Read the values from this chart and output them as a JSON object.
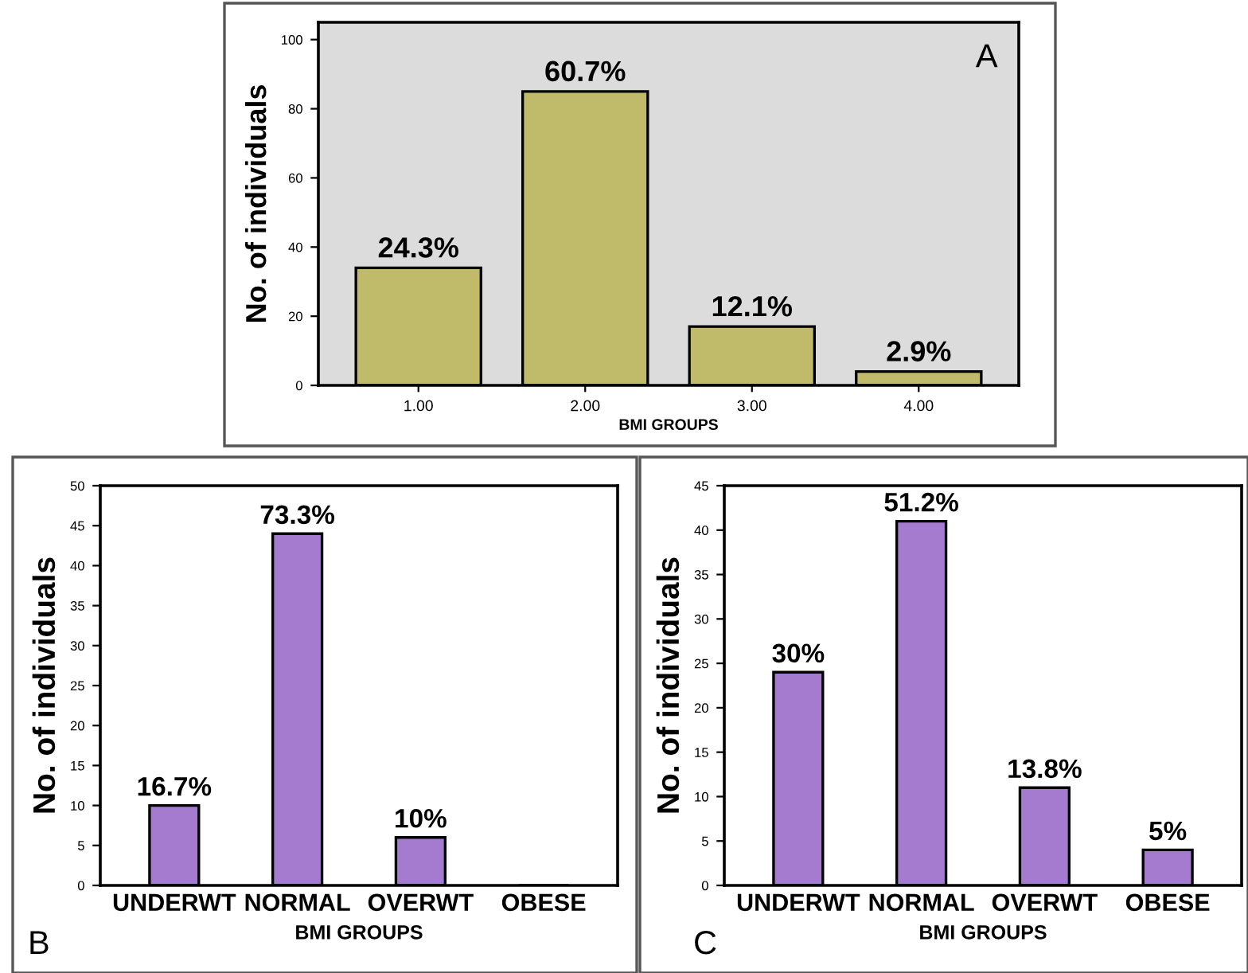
{
  "chart_data": [
    {
      "type": "bar",
      "xlabel": "BMI GROUPS",
      "ylabel": "No. of individuals",
      "categories": [
        "1.00",
        "2.00",
        "3.00",
        "4.00"
      ],
      "values": [
        34,
        85,
        17,
        4
      ],
      "color": "#c0bb6a",
      "ylim": [
        0,
        105
      ],
      "yticks": [
        0,
        20,
        40,
        60,
        80,
        100
      ],
      "grid": false,
      "legend": false,
      "annotations": [
        "A",
        {
          "text": "24.3%",
          "x": "1.00",
          "y": 34
        },
        {
          "text": "60.7%",
          "x": "2.00",
          "y": 85
        },
        {
          "text": "12.1%",
          "x": "3.00",
          "y": 17
        },
        {
          "text": "2.9%",
          "x": "4.00",
          "y": 4
        }
      ]
    },
    {
      "type": "bar",
      "xlabel": "BMI GROUPS",
      "ylabel": "No. of individuals",
      "categories": [
        "UNDERWT",
        "NORMAL",
        "OVERWT",
        "OBESE"
      ],
      "values": [
        10,
        44,
        6,
        0
      ],
      "color": "#a57bd0",
      "ylim": [
        0,
        50
      ],
      "yticks": [
        0,
        5,
        10,
        15,
        20,
        25,
        30,
        35,
        40,
        45,
        50
      ],
      "grid": false,
      "legend": false,
      "annotations": [
        "B",
        {
          "text": "16.7%",
          "x": "UNDERWT",
          "y": 10
        },
        {
          "text": "73.3%",
          "x": "NORMAL",
          "y": 44
        },
        {
          "text": "10%",
          "x": "OVERWT",
          "y": 6
        }
      ]
    },
    {
      "type": "bar",
      "xlabel": "BMI GROUPS",
      "ylabel": "No. of individuals",
      "categories": [
        "UNDERWT",
        "NORMAL",
        "OVERWT",
        "OBESE"
      ],
      "values": [
        24,
        41,
        11,
        4
      ],
      "color": "#a57bd0",
      "ylim": [
        0,
        45
      ],
      "yticks": [
        0,
        5,
        10,
        15,
        20,
        25,
        30,
        35,
        40,
        45
      ],
      "grid": false,
      "legend": false,
      "annotations": [
        "C",
        {
          "text": "30%",
          "x": "UNDERWT",
          "y": 24
        },
        {
          "text": "51.2%",
          "x": "NORMAL",
          "y": 41
        },
        {
          "text": "13.8%",
          "x": "OVERWT",
          "y": 11
        },
        {
          "text": "5%",
          "x": "OBESE",
          "y": 4
        }
      ]
    }
  ]
}
